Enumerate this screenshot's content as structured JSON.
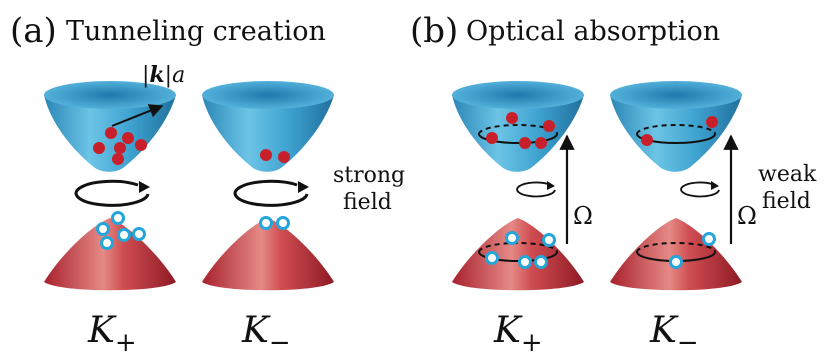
{
  "panels": [
    {
      "tag": "(a)",
      "title": "Tunneling creation"
    },
    {
      "tag": "(b)",
      "title": "Optical absorption"
    }
  ],
  "momentum_label": {
    "bold_k": "k",
    "pipe": "|",
    "a": "a"
  },
  "field_labels": {
    "strong": [
      "strong",
      "field"
    ],
    "weak": [
      "weak",
      "field"
    ]
  },
  "omega": "Ω",
  "valley_labels": [
    {
      "letter": "K",
      "sub": "+"
    },
    {
      "letter": "K",
      "sub": "−"
    },
    {
      "letter": "K",
      "sub": "+"
    },
    {
      "letter": "K",
      "sub": "−"
    }
  ],
  "colors": {
    "conduction": "#3fa3d0",
    "valence": "#c6343f",
    "electron": "#c8202a",
    "hole_ring": "#24a6da",
    "ink": "#111111"
  }
}
